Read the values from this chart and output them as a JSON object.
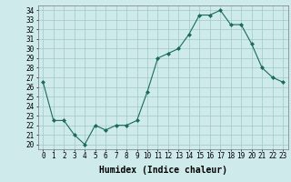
{
  "x": [
    0,
    1,
    2,
    3,
    4,
    5,
    6,
    7,
    8,
    9,
    10,
    11,
    12,
    13,
    14,
    15,
    16,
    17,
    18,
    19,
    20,
    21,
    22,
    23
  ],
  "y": [
    26.5,
    22.5,
    22.5,
    21.0,
    20.0,
    22.0,
    21.5,
    22.0,
    22.0,
    22.5,
    25.5,
    29.0,
    29.5,
    30.0,
    31.5,
    33.5,
    33.5,
    34.0,
    32.5,
    32.5,
    30.5,
    28.0,
    27.0,
    26.5
  ],
  "line_color": "#1a6b5a",
  "marker": "D",
  "marker_size": 2.0,
  "bg_color": "#ceeaea",
  "grid_color": "#a0c8c8",
  "xlabel": "Humidex (Indice chaleur)",
  "xlabel_fontsize": 7,
  "ylabel_ticks": [
    20,
    21,
    22,
    23,
    24,
    25,
    26,
    27,
    28,
    29,
    30,
    31,
    32,
    33,
    34
  ],
  "xlim": [
    -0.5,
    23.5
  ],
  "ylim": [
    19.5,
    34.5
  ],
  "tick_fontsize": 5.5
}
